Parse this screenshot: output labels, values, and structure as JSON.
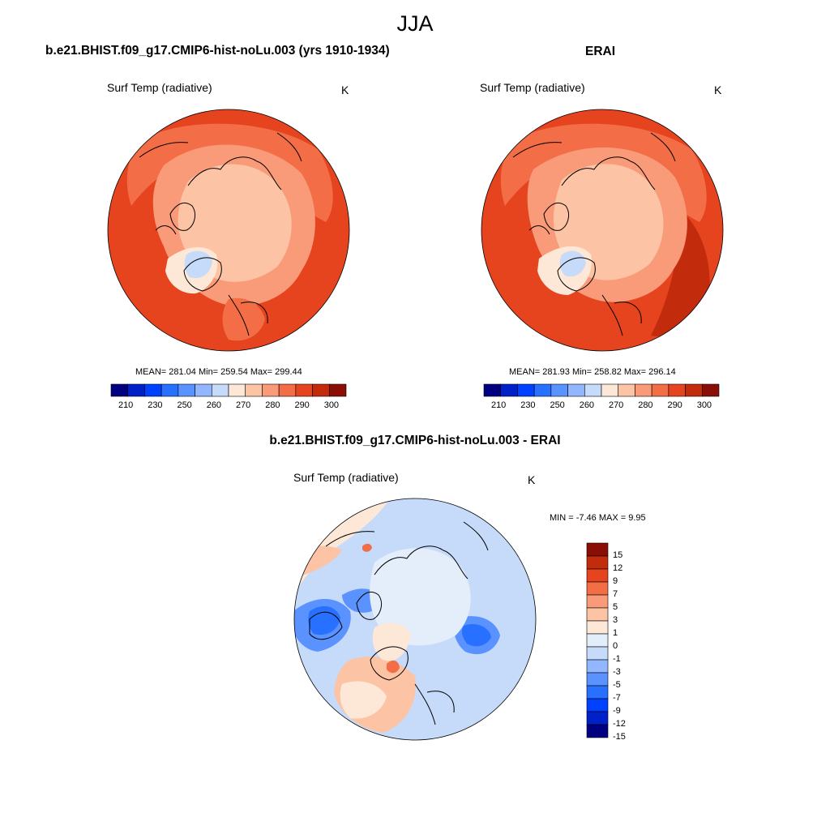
{
  "figure": {
    "title": "JJA"
  },
  "colors": {
    "warm_scale": [
      "#000080",
      "#0020c8",
      "#0040ff",
      "#2870ff",
      "#5a92ff",
      "#92b6ff",
      "#c6dafa",
      "#fde8d8",
      "#fcc4a4",
      "#f99a78",
      "#f36d47",
      "#e6431f",
      "#c22c0d",
      "#8b0e06"
    ],
    "diff_scale": [
      "#000080",
      "#0020c8",
      "#0040ff",
      "#2870ff",
      "#5a92ff",
      "#92b6ff",
      "#c6dafa",
      "#e4eefa",
      "#fde8d8",
      "#fcc4a4",
      "#f99a78",
      "#f36d47",
      "#e6431f",
      "#c22c0d",
      "#8b0e06"
    ]
  },
  "panels": [
    {
      "id": "model",
      "title": "b.e21.BHIST.f09_g17.CMIP6-hist-noLu.003 (yrs 1910-1934)",
      "variable": "Surf Temp (radiative)",
      "units": "K",
      "stats": "MEAN= 281.04  Min= 259.54  Max= 299.44",
      "colorbar_ticks": [
        "210",
        "230",
        "250",
        "260",
        "270",
        "280",
        "290",
        "300"
      ]
    },
    {
      "id": "obs",
      "title": "ERAI",
      "variable": "Surf Temp (radiative)",
      "units": "K",
      "stats": "MEAN= 281.93  Min= 258.82  Max= 296.14",
      "colorbar_ticks": [
        "210",
        "230",
        "250",
        "260",
        "270",
        "280",
        "290",
        "300"
      ]
    },
    {
      "id": "diff",
      "title": "b.e21.BHIST.f09_g17.CMIP6-hist-noLu.003 - ERAI",
      "variable": "Surf Temp (radiative)",
      "units": "K",
      "stats": "MIN =  -7.46 MAX =   9.95",
      "colorbar_ticks": [
        "15",
        "12",
        "9",
        "7",
        "5",
        "3",
        "1",
        "0",
        "-1",
        "-3",
        "-5",
        "-7",
        "-9",
        "-12",
        "-15"
      ]
    }
  ]
}
